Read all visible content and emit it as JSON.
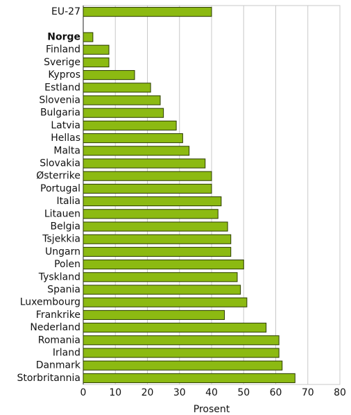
{
  "chart_data": {
    "type": "hbar",
    "xlabel": "Prosent",
    "categories": [
      "EU-27",
      null,
      "Norge",
      "Finland",
      "Sverige",
      "Kypros",
      "Estland",
      "Slovenia",
      "Bulgaria",
      "Latvia",
      "Hellas",
      "Malta",
      "Slovakia",
      "Østerrike",
      "Portugal",
      "Italia",
      "Litauen",
      "Belgia",
      "Tsjekkia",
      "Ungarn",
      "Polen",
      "Tyskland",
      "Spania",
      "Luxembourg",
      "Frankrike",
      "Nederland",
      "Romania",
      "Irland",
      "Danmark",
      "Storbritannia"
    ],
    "values": [
      40,
      null,
      3,
      8,
      8,
      16,
      21,
      24,
      25,
      29,
      31,
      33,
      38,
      40,
      40,
      43,
      42,
      45,
      46,
      46,
      50,
      48,
      49,
      51,
      44,
      57,
      61,
      61,
      62,
      66
    ],
    "bold_categories": [
      "Norge"
    ],
    "color": "#8cba12",
    "xlim": [
      0,
      80
    ],
    "xticks": [
      0,
      10,
      20,
      30,
      40,
      50,
      60,
      70,
      80
    ],
    "grid": true
  }
}
